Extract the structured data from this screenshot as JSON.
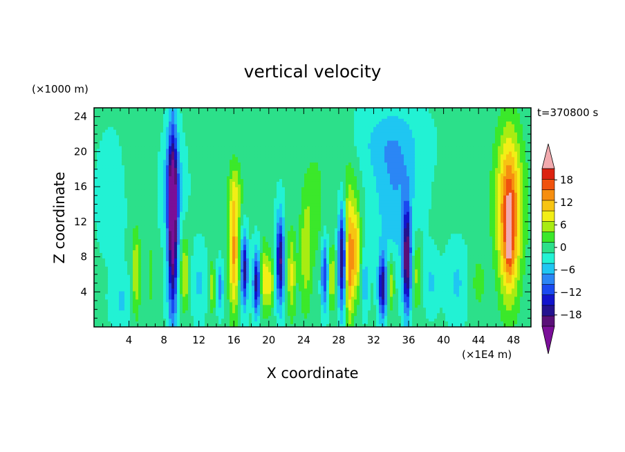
{
  "chart_data": {
    "type": "heatmap",
    "title": "vertical velocity",
    "xlabel": "X coordinate",
    "ylabel": "Z coordinate",
    "x_units": "(×1E4 m)",
    "y_units": "(×1000 m)",
    "time_label": "t=370800 s",
    "xlim": [
      0,
      50
    ],
    "ylim": [
      0,
      25
    ],
    "x_ticks": [
      4,
      8,
      12,
      16,
      20,
      24,
      28,
      32,
      36,
      40,
      44,
      48
    ],
    "y_ticks": [
      4,
      8,
      12,
      16,
      20,
      24
    ],
    "colorbar": {
      "levels": [
        -21,
        -18,
        -15,
        -12,
        -9,
        -6,
        -3,
        0,
        3,
        6,
        9,
        12,
        15,
        18,
        21
      ],
      "tick_values": [
        18,
        12,
        6,
        0,
        -6,
        -12,
        -18
      ],
      "colors": [
        "#5a1078",
        "#24128f",
        "#1214cc",
        "#1a4af0",
        "#2b86f5",
        "#1fc6f2",
        "#22f2d4",
        "#2ce08a",
        "#3be82a",
        "#a8ec12",
        "#f2ee16",
        "#f7c412",
        "#f68e10",
        "#f0520e",
        "#dc2210"
      ],
      "under_color": "#7a0f98",
      "over_color": "#f2aaae"
    },
    "background_value": 0.5,
    "features": [
      {
        "x": 9.0,
        "z": 12.0,
        "w": 0.55,
        "h": 10.5,
        "amp": -26
      },
      {
        "x": 9.0,
        "z": 16.0,
        "w": 1.2,
        "h": 5.0,
        "amp": -7
      },
      {
        "x": 4.8,
        "z": 6.0,
        "w": 0.5,
        "h": 5.0,
        "amp": 9
      },
      {
        "x": 6.5,
        "z": 6.0,
        "w": 0.4,
        "h": 4.0,
        "amp": 4
      },
      {
        "x": 3.2,
        "z": 3.0,
        "w": 1.2,
        "h": 3.0,
        "amp": -4
      },
      {
        "x": 10.4,
        "z": 6.0,
        "w": 0.5,
        "h": 4.0,
        "amp": 9
      },
      {
        "x": 12.0,
        "z": 5.0,
        "w": 0.8,
        "h": 4.0,
        "amp": -4
      },
      {
        "x": 13.5,
        "z": 4.5,
        "w": 0.4,
        "h": 3.0,
        "amp": 7
      },
      {
        "x": 14.4,
        "z": 4.5,
        "w": 0.35,
        "h": 2.5,
        "amp": -9
      },
      {
        "x": 16.0,
        "z": 8.5,
        "w": 0.6,
        "h": 7.0,
        "amp": 15
      },
      {
        "x": 16.2,
        "z": 15.5,
        "w": 0.9,
        "h": 3.5,
        "amp": 5
      },
      {
        "x": 17.2,
        "z": 6.5,
        "w": 0.4,
        "h": 4.0,
        "amp": -17
      },
      {
        "x": 18.6,
        "z": 5.0,
        "w": 0.4,
        "h": 3.5,
        "amp": -18
      },
      {
        "x": 19.5,
        "z": 5.5,
        "w": 0.5,
        "h": 4.0,
        "amp": 10
      },
      {
        "x": 21.3,
        "z": 7.5,
        "w": 0.45,
        "h": 5.0,
        "amp": -19
      },
      {
        "x": 20.2,
        "z": 5.0,
        "w": 0.4,
        "h": 3.0,
        "amp": 8
      },
      {
        "x": 22.6,
        "z": 6.0,
        "w": 0.5,
        "h": 5.0,
        "amp": 9
      },
      {
        "x": 24.2,
        "z": 8.0,
        "w": 0.7,
        "h": 7.0,
        "amp": 7
      },
      {
        "x": 25.3,
        "z": 14.0,
        "w": 1.2,
        "h": 7.0,
        "amp": 4
      },
      {
        "x": 26.4,
        "z": 6.0,
        "w": 0.4,
        "h": 4.0,
        "amp": -13
      },
      {
        "x": 27.2,
        "z": 5.5,
        "w": 0.4,
        "h": 3.5,
        "amp": 9
      },
      {
        "x": 28.4,
        "z": 8.0,
        "w": 0.45,
        "h": 6.0,
        "amp": -20
      },
      {
        "x": 29.2,
        "z": 7.0,
        "w": 0.5,
        "h": 6.5,
        "amp": 16
      },
      {
        "x": 30.0,
        "z": 8.5,
        "w": 0.5,
        "h": 5.0,
        "amp": 12
      },
      {
        "x": 29.2,
        "z": 15.0,
        "w": 1.2,
        "h": 6.0,
        "amp": 4
      },
      {
        "x": 31.0,
        "z": 5.0,
        "w": 0.4,
        "h": 3.0,
        "amp": -6
      },
      {
        "x": 33.0,
        "z": 4.5,
        "w": 0.45,
        "h": 3.5,
        "amp": -18
      },
      {
        "x": 34.0,
        "z": 5.0,
        "w": 0.4,
        "h": 3.0,
        "amp": 8
      },
      {
        "x": 35.8,
        "z": 7.5,
        "w": 0.45,
        "h": 6.0,
        "amp": -21
      },
      {
        "x": 34.5,
        "z": 15.0,
        "w": 2.5,
        "h": 8.0,
        "amp": -6
      },
      {
        "x": 37.0,
        "z": 6.0,
        "w": 0.5,
        "h": 4.0,
        "amp": 7
      },
      {
        "x": 38.6,
        "z": 5.0,
        "w": 0.8,
        "h": 3.0,
        "amp": -4
      },
      {
        "x": 41.5,
        "z": 5.0,
        "w": 1.2,
        "h": 4.0,
        "amp": -4
      },
      {
        "x": 44.0,
        "z": 5.0,
        "w": 0.8,
        "h": 3.0,
        "amp": 4
      },
      {
        "x": 47.5,
        "z": 12.0,
        "w": 1.2,
        "h": 9.0,
        "amp": 17
      },
      {
        "x": 47.5,
        "z": 10.0,
        "w": 0.35,
        "h": 3.5,
        "amp": 8
      },
      {
        "x": 47.5,
        "z": 15.0,
        "w": 2.3,
        "h": 9.0,
        "amp": 5
      },
      {
        "x": 2.0,
        "z": 15.0,
        "w": 1.5,
        "h": 6.0,
        "amp": -3
      },
      {
        "x": 33.5,
        "z": 21.0,
        "w": 4.0,
        "h": 4.0,
        "amp": -3.5
      },
      {
        "x": 5.0,
        "z": 18.0,
        "w": 2.0,
        "h": 5.0,
        "amp": 1
      }
    ]
  }
}
